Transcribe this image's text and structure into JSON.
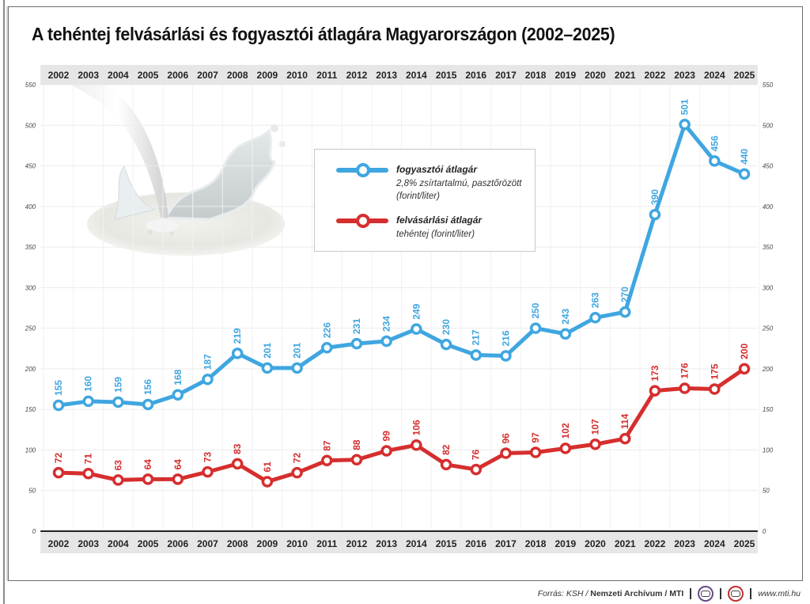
{
  "title": "A tehéntej felvásárlási és fogyasztói átlagára Magyarországon (2002–2025)",
  "legend": {
    "consumer": {
      "name": "fogyasztói átlagár",
      "desc": "2,8% zsírtartalmú, pasztőrözött (forint/liter)"
    },
    "purchase": {
      "name": "felvásárlási átlagár",
      "desc": "tehéntej (forint/liter)"
    }
  },
  "footer": {
    "source_prefix": "Forrás: KSH /",
    "source_bold": "Nemzeti Archívum / MTI",
    "website": "www.mti.hu",
    "logos": [
      "mtva-logo",
      "mti-logo"
    ]
  },
  "colors": {
    "consumer": "#3fa6e0",
    "purchase": "#d62e2e",
    "axis_band": "#e6e6e6",
    "grid": "#ececec"
  },
  "chart_data": {
    "type": "line",
    "title": "A tehéntej felvásárlási és fogyasztói átlagára Magyarországon (2002–2025)",
    "xlabel": "",
    "ylabel": "forint/liter",
    "categories": [
      "2002",
      "2003",
      "2004",
      "2005",
      "2006",
      "2007",
      "2008",
      "2009",
      "2010",
      "2011",
      "2012",
      "2013",
      "2014",
      "2015",
      "2016",
      "2017",
      "2018",
      "2019",
      "2020",
      "2021",
      "2022",
      "2023",
      "2024",
      "2025"
    ],
    "series": [
      {
        "name": "fogyasztói átlagár",
        "key": "consumer",
        "values": [
          155,
          160,
          159,
          156,
          168,
          187,
          219,
          201,
          201,
          226,
          231,
          234,
          249,
          230,
          217,
          216,
          250,
          243,
          263,
          270,
          390,
          501,
          456,
          440
        ]
      },
      {
        "name": "felvásárlási átlagár",
        "key": "purchase",
        "values": [
          72,
          71,
          63,
          64,
          64,
          73,
          83,
          61,
          72,
          87,
          88,
          99,
          106,
          82,
          76,
          96,
          97,
          102,
          107,
          114,
          173,
          176,
          175,
          200
        ]
      }
    ],
    "ylim": [
      0,
      550
    ],
    "yticks": [
      0,
      50,
      100,
      150,
      200,
      250,
      300,
      350,
      400,
      450,
      500,
      550
    ],
    "grid": true,
    "legend_position": "top-center",
    "x_labels_top_and_bottom": true,
    "y_labels_left_and_right": true
  }
}
